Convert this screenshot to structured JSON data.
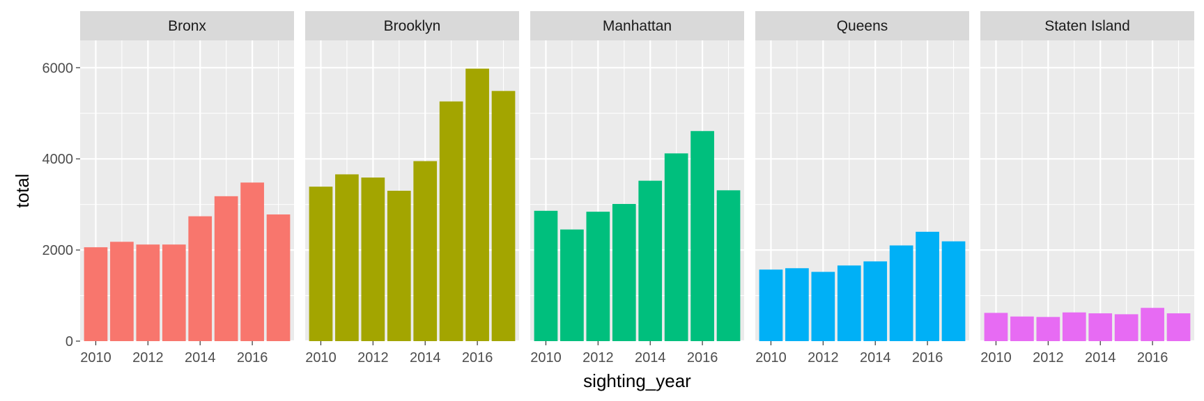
{
  "chart_data": {
    "type": "bar",
    "xlabel": "sighting_year",
    "ylabel": "total",
    "ylim": [
      0,
      6600
    ],
    "y_breaks": [
      0,
      2000,
      4000,
      6000
    ],
    "y_minor_breaks": [
      1000,
      3000,
      5000
    ],
    "x_breaks": [
      2010,
      2012,
      2014,
      2016
    ],
    "x_range": [
      2009.4,
      2017.6
    ],
    "x": [
      2010,
      2011,
      2012,
      2013,
      2014,
      2015,
      2016,
      2017
    ],
    "facets": [
      {
        "name": "Bronx",
        "color": "#F8766D",
        "values": [
          2060,
          2180,
          2120,
          2120,
          2740,
          3180,
          3480,
          2780
        ]
      },
      {
        "name": "Brooklyn",
        "color": "#A3A500",
        "values": [
          3390,
          3660,
          3590,
          3300,
          3950,
          5260,
          5980,
          5490
        ]
      },
      {
        "name": "Manhattan",
        "color": "#00BF7D",
        "values": [
          2860,
          2450,
          2840,
          3010,
          3520,
          4120,
          4610,
          3310
        ]
      },
      {
        "name": "Queens",
        "color": "#00B0F6",
        "values": [
          1570,
          1600,
          1520,
          1660,
          1750,
          2100,
          2400,
          2190
        ]
      },
      {
        "name": "Staten Island",
        "color": "#E76BF3",
        "values": [
          620,
          540,
          530,
          630,
          610,
          590,
          730,
          610
        ]
      }
    ]
  }
}
